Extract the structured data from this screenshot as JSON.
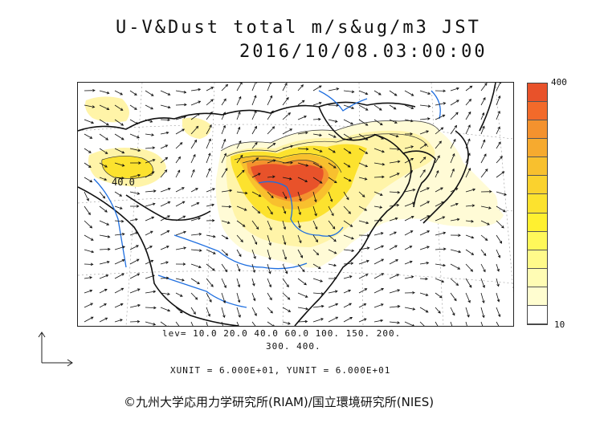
{
  "title": {
    "line1": "U-V&Dust total m/s&ug/m3 JST",
    "line2": "2016/10/08.03:00:00"
  },
  "colorbar": {
    "max_label": "400",
    "min_label": "10",
    "colors": [
      "#e8522a",
      "#f26a2a",
      "#f4922e",
      "#f6aa2f",
      "#f8c02e",
      "#fad22e",
      "#fce22e",
      "#fff030",
      "#fff85a",
      "#fffa8a",
      "#fffcb4",
      "#fffdd0",
      "#ffffff"
    ]
  },
  "levels": {
    "line1": "lev= 10.0 20.0 40.0 60.0 100. 150. 200.",
    "line2": "300. 400."
  },
  "units_text": "XUNIT = 6.000E+01, YUNIT = 6.000E+01",
  "contour_label": "40.0",
  "credit": "©九州大学応用力学研究所(RIAM)/国立環境研究所(NIES)",
  "palette": {
    "coast": "#111111",
    "river": "#1f6fe0",
    "high": "#e8522a",
    "mid": "#f8c02e",
    "low": "#fff4a8",
    "pale": "#fffbd6"
  }
}
